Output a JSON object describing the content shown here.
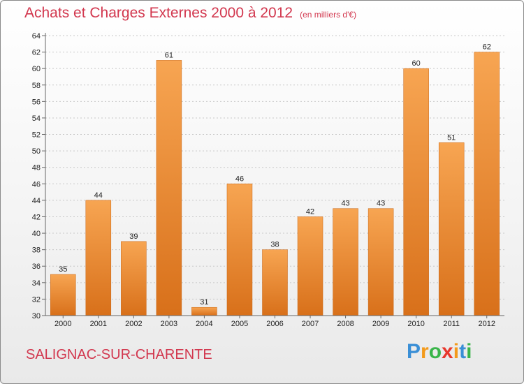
{
  "title": {
    "main": "Achats et Charges Externes 2000 à 2012",
    "unit": "(en milliers d'€)"
  },
  "commune": "SALIGNAC-SUR-CHARENTE",
  "logo": {
    "letters": [
      "P",
      "r",
      "o",
      "x",
      "i",
      "t",
      "i"
    ],
    "colors": [
      "#3a8fd6",
      "#f39a1b",
      "#3ab54a",
      "#e8372c",
      "#f39a1b",
      "#3a8fd6",
      "#3ab54a"
    ]
  },
  "colors": {
    "bar_top": "#f7a552",
    "bar_bottom": "#d8701a",
    "text": "#d2374e",
    "axis": "#666666"
  },
  "chart_data": {
    "type": "bar",
    "title": "Achats et Charges Externes 2000 à 2012",
    "subtitle": "(en milliers d'€)",
    "categories": [
      "2000",
      "2001",
      "2002",
      "2003",
      "2004",
      "2005",
      "2006",
      "2007",
      "2008",
      "2009",
      "2010",
      "2011",
      "2012"
    ],
    "values": [
      35,
      44,
      39,
      61,
      31,
      46,
      38,
      42,
      43,
      43,
      60,
      51,
      62
    ],
    "data_labels": [
      "35",
      "44",
      "39",
      "61",
      "31",
      "46",
      "38",
      "42",
      "43",
      "43",
      "60",
      "51",
      "62"
    ],
    "ylim": [
      30,
      64
    ],
    "yticks": [
      "30",
      "32",
      "34",
      "36",
      "38",
      "40",
      "42",
      "44",
      "46",
      "48",
      "50",
      "52",
      "54",
      "56",
      "58",
      "60",
      "62",
      "64"
    ],
    "grid": true
  }
}
